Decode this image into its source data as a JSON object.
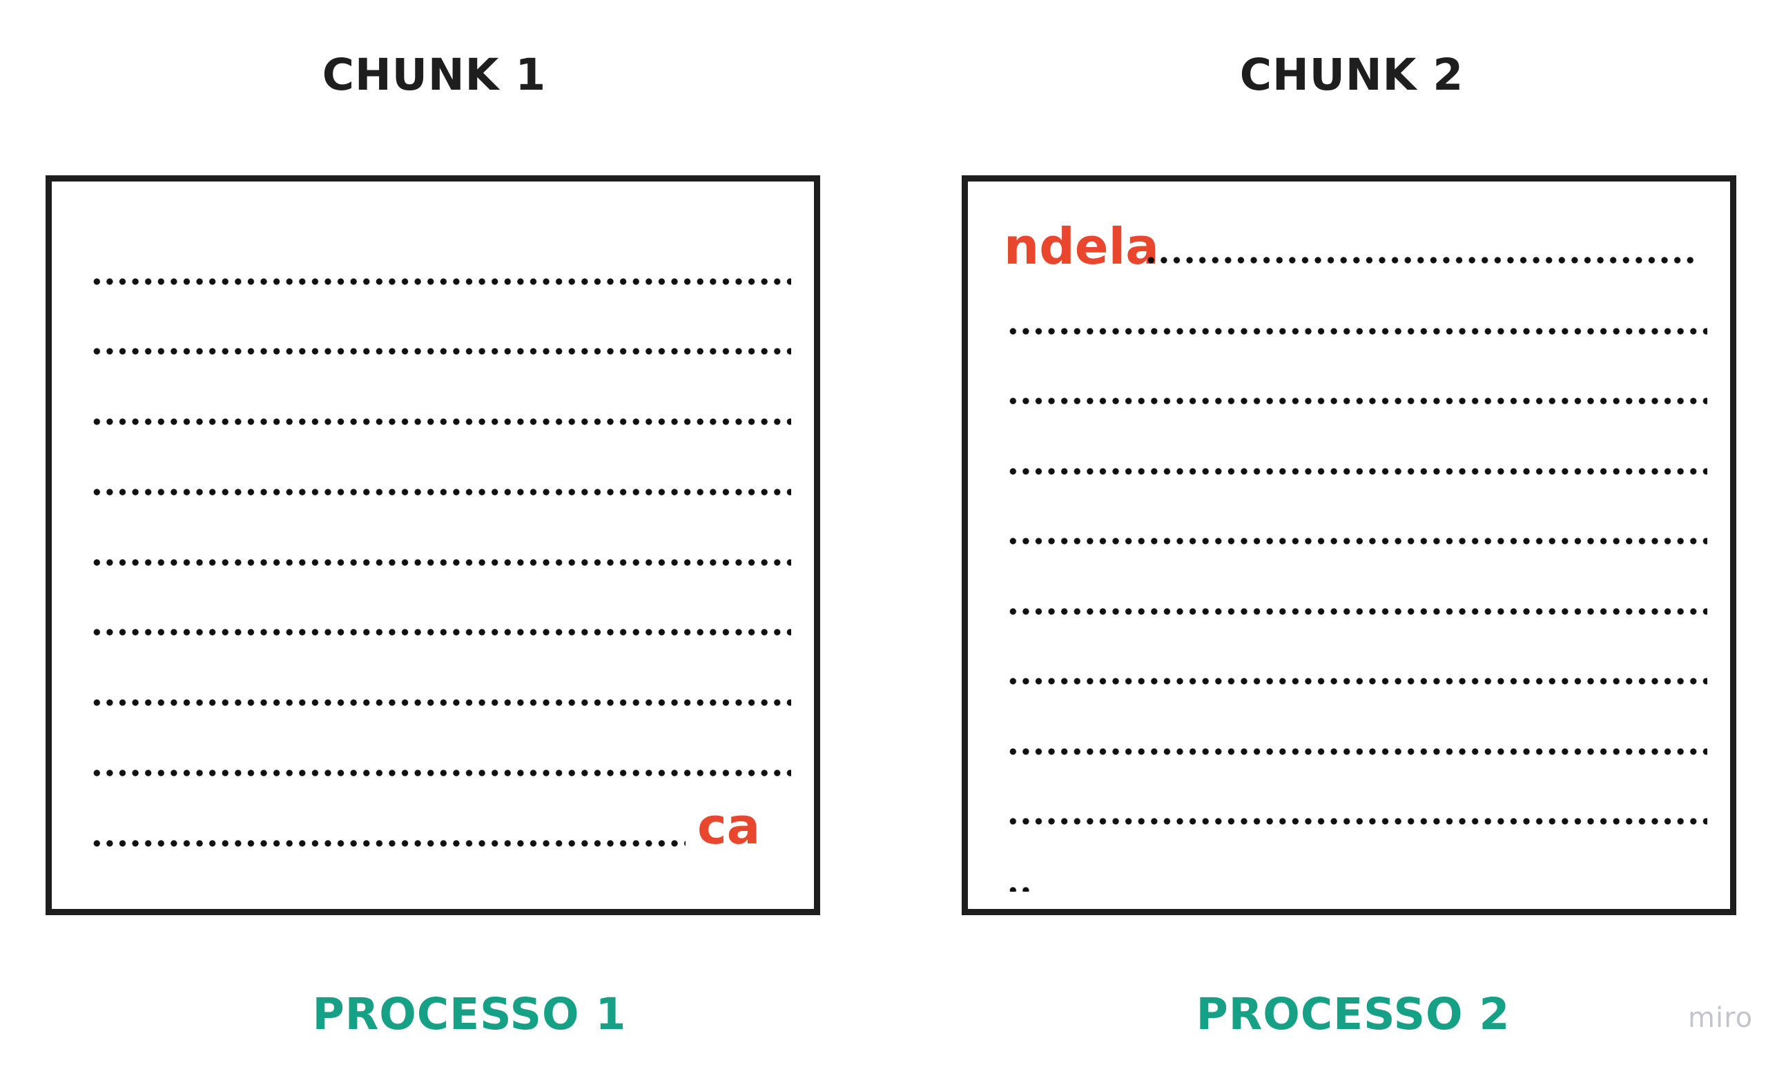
{
  "chunks": [
    {
      "title": "CHUNK 1",
      "fragment": "ca",
      "process": "PROCESSO 1"
    },
    {
      "title": "CHUNK 2",
      "fragment": "ndela",
      "process": "PROCESSO 2"
    }
  ],
  "watermark": "miro",
  "colors": {
    "fragment": "#e8472e",
    "process": "#16a085",
    "border": "#1e1e1e",
    "dots": "#111111"
  }
}
